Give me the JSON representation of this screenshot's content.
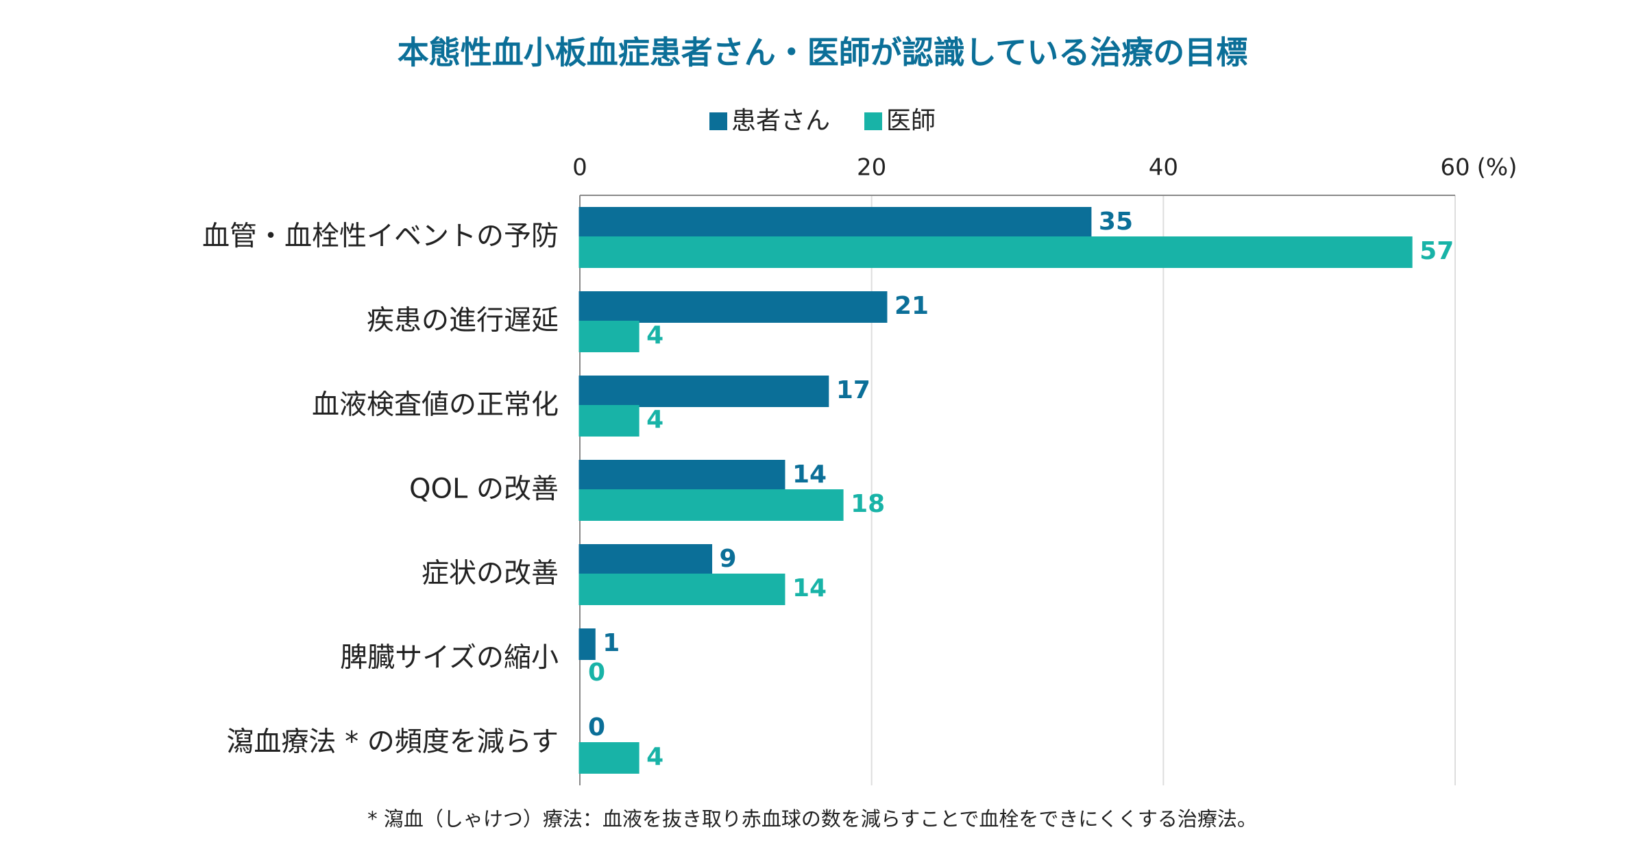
{
  "chart_data": {
    "type": "hbar",
    "title": "本態性血小板血症患者さん・医師が認識している治療の目標",
    "categories": [
      "血管・血栓性イベントの予防",
      "疾患の進行遅延",
      "血液検査値の正常化",
      "QOL の改善",
      "症状の改善",
      "脾臓サイズの縮小",
      "瀉血療法 * の頻度を減らす"
    ],
    "series": [
      {
        "name": "患者さん",
        "color": "#0b6f98",
        "values": [
          35,
          21,
          17,
          14,
          9,
          1,
          0
        ]
      },
      {
        "name": "医師",
        "color": "#18b3a7",
        "values": [
          57,
          4,
          4,
          18,
          14,
          0,
          4
        ]
      }
    ],
    "xlim": [
      0,
      60
    ],
    "xticks": [
      0,
      20,
      40,
      60
    ],
    "x_unit": "(%)",
    "grid": true,
    "legend": "top",
    "footnote": "* 瀉血（しゃけつ）療法：血液を抜き取り赤血球の数を減らすことで血栓をできにくくする治療法。"
  }
}
